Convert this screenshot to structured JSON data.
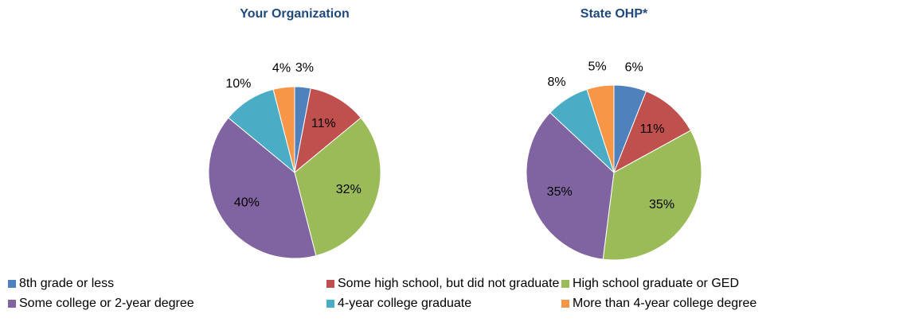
{
  "legend": {
    "items": [
      "8th grade or less",
      "Some high school, but did not graduate",
      "High school graduate or GED",
      "Some college or 2-year degree",
      "4-year college graduate",
      "More than 4-year college degree"
    ],
    "colors": [
      "#4f81bd",
      "#c0504d",
      "#9bbb59",
      "#8064a2",
      "#4bacc6",
      "#f79646"
    ]
  },
  "chart_data": [
    {
      "type": "pie",
      "title": "Your Organization",
      "values": [
        3,
        11,
        32,
        40,
        10,
        4
      ],
      "value_labels": [
        "3%",
        "11%",
        "32%",
        "40%",
        "10%",
        "4%"
      ]
    },
    {
      "type": "pie",
      "title": "State OHP*",
      "values": [
        6,
        11,
        35,
        35,
        8,
        5
      ],
      "value_labels": [
        "6%",
        "11%",
        "35%",
        "35%",
        "8%",
        "5%"
      ]
    }
  ]
}
